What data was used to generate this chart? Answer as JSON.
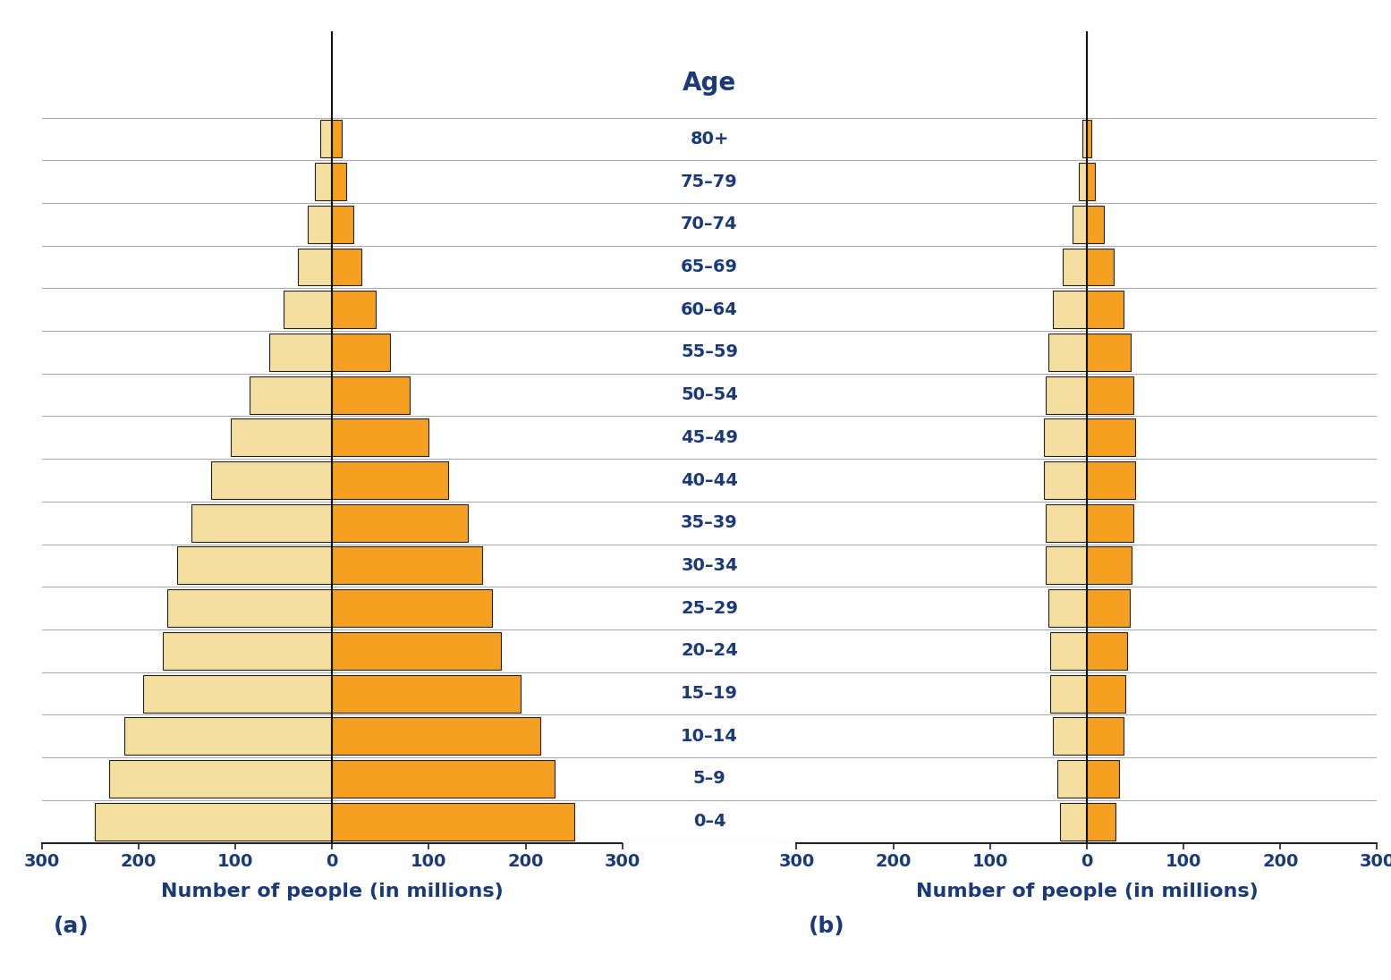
{
  "age_labels": [
    "80+",
    "75–79",
    "70–74",
    "65–69",
    "60–64",
    "55–59",
    "50–54",
    "45–49",
    "40–44",
    "35–39",
    "30–34",
    "25–29",
    "20–24",
    "15–19",
    "10–14",
    "5–9",
    "0–4"
  ],
  "chart_a_left": [
    12,
    18,
    25,
    35,
    50,
    65,
    85,
    105,
    125,
    145,
    160,
    170,
    175,
    195,
    215,
    230,
    245
  ],
  "chart_a_right": [
    10,
    15,
    22,
    30,
    45,
    60,
    80,
    100,
    120,
    140,
    155,
    165,
    175,
    195,
    215,
    230,
    250
  ],
  "chart_b_left": [
    5,
    8,
    15,
    25,
    35,
    40,
    42,
    44,
    44,
    42,
    42,
    40,
    38,
    38,
    35,
    30,
    28
  ],
  "chart_b_right": [
    5,
    8,
    18,
    28,
    38,
    45,
    48,
    50,
    50,
    48,
    46,
    44,
    42,
    40,
    38,
    33,
    30
  ],
  "xlim": 300,
  "left_color": "#F5DFA0",
  "right_color": "#F5A020",
  "bar_edgecolor": "#222222",
  "bar_linewidth": 0.8,
  "title": "Age",
  "title_fontsize": 20,
  "label_fontsize": 16,
  "age_label_fontsize": 14,
  "tick_fontsize": 14,
  "xlabel": "Number of people (in millions)",
  "label_a": "(a)",
  "label_b": "(b)",
  "background_color": "#ffffff",
  "grid_color": "#aaaaaa",
  "text_color": "#1a3a7a",
  "vline_color": "#111111"
}
